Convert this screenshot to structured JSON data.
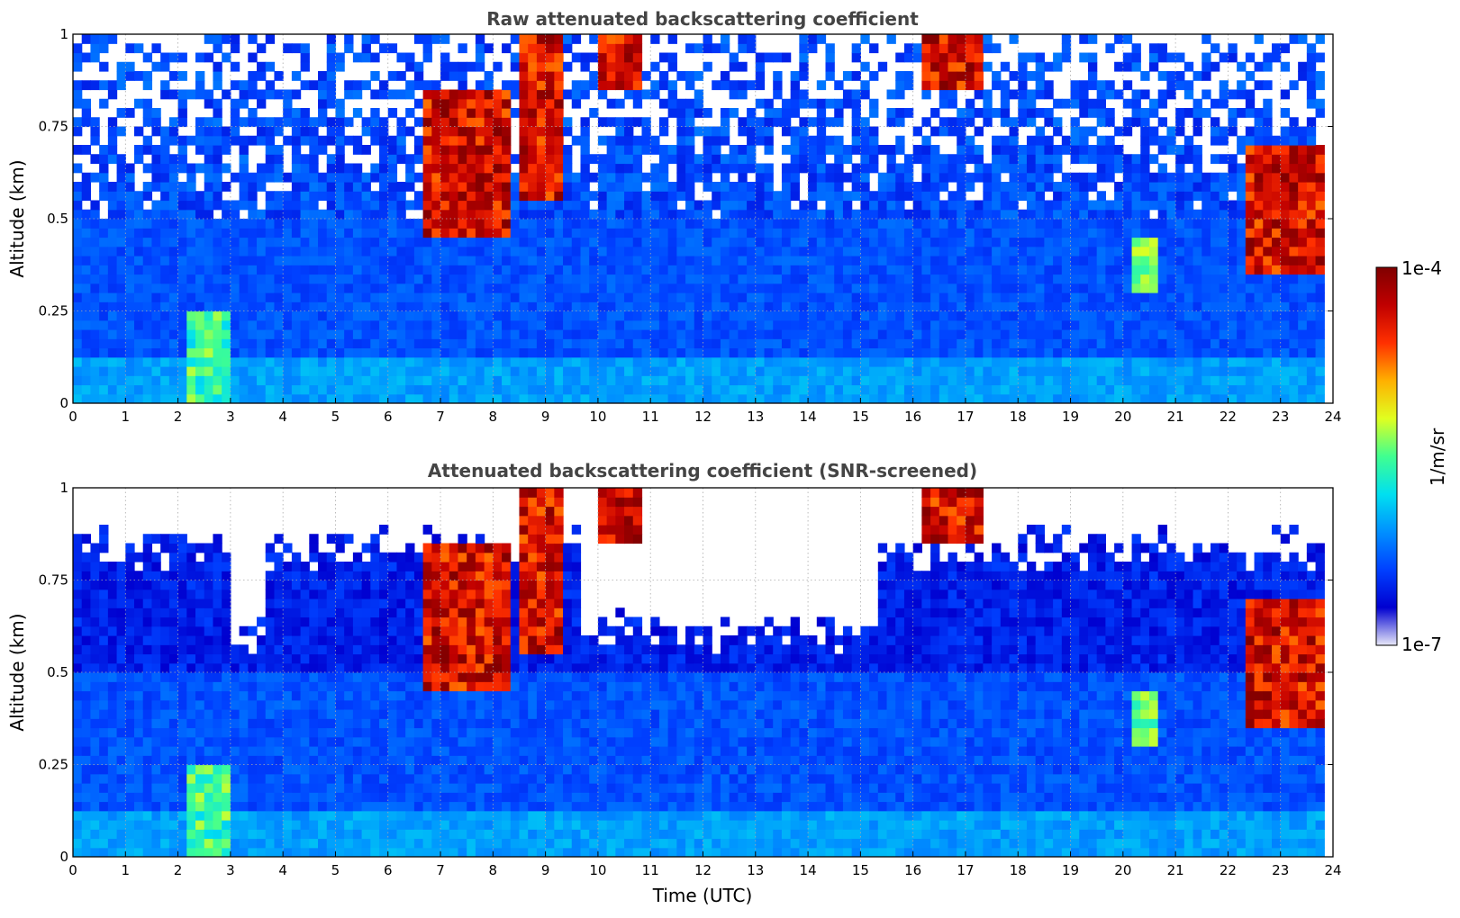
{
  "colorbar": {
    "max_label": "1e-4",
    "min_label": "1e-7",
    "unit_label": "1/m/sr",
    "colormap": [
      "#e8e8f8",
      "#0000d0",
      "#0040ff",
      "#0090ff",
      "#00e0f0",
      "#40ff90",
      "#e0ff20",
      "#ffb000",
      "#ff3000",
      "#c00000",
      "#800000"
    ]
  },
  "chart_data": [
    {
      "type": "heatmap",
      "title": "Raw attenuated backscattering coefficient",
      "xlabel": "",
      "ylabel": "Altitude (km)",
      "xlim": [
        0,
        24
      ],
      "ylim": [
        0,
        1
      ],
      "x_ticks": [
        "0",
        "1",
        "2",
        "3",
        "4",
        "5",
        "6",
        "7",
        "8",
        "9",
        "10",
        "11",
        "12",
        "13",
        "14",
        "15",
        "16",
        "17",
        "18",
        "19",
        "20",
        "21",
        "22",
        "23",
        "24"
      ],
      "y_ticks": [
        "0",
        "0.25",
        "0.5",
        "0.75",
        "1"
      ],
      "grid": true,
      "colorscale": "log",
      "color_range": [
        1e-07,
        0.0001
      ],
      "features": [
        {
          "x": [
            2.2,
            3.0
          ],
          "y": [
            0.0,
            0.25
          ],
          "level": "high-aerosol"
        },
        {
          "x": [
            6.7,
            8.4
          ],
          "y": [
            0.45,
            0.85
          ],
          "level": "cloud"
        },
        {
          "x": [
            8.5,
            9.4
          ],
          "y": [
            0.55,
            1.0
          ],
          "level": "cloud"
        },
        {
          "x": [
            10.0,
            10.8
          ],
          "y": [
            0.85,
            1.0
          ],
          "level": "cloud"
        },
        {
          "x": [
            16.1,
            17.4
          ],
          "y": [
            0.85,
            1.0
          ],
          "level": "cloud"
        },
        {
          "x": [
            20.2,
            20.6
          ],
          "y": [
            0.3,
            0.45
          ],
          "level": "aerosol"
        },
        {
          "x": [
            22.4,
            23.8
          ],
          "y": [
            0.35,
            0.7
          ],
          "level": "cloud"
        }
      ]
    },
    {
      "type": "heatmap",
      "title": "Attenuated backscattering coefficient (SNR-screened)",
      "xlabel": "Time (UTC)",
      "ylabel": "Altitude (km)",
      "xlim": [
        0,
        24
      ],
      "ylim": [
        0,
        1
      ],
      "x_ticks": [
        "0",
        "1",
        "2",
        "3",
        "4",
        "5",
        "6",
        "7",
        "8",
        "9",
        "10",
        "11",
        "12",
        "13",
        "14",
        "15",
        "16",
        "17",
        "18",
        "19",
        "20",
        "21",
        "22",
        "23",
        "24"
      ],
      "y_ticks": [
        "0",
        "0.25",
        "0.5",
        "0.75",
        "1"
      ],
      "grid": true,
      "colorscale": "log",
      "color_range": [
        1e-07,
        0.0001
      ],
      "features": [
        {
          "x": [
            2.2,
            3.0
          ],
          "y": [
            0.0,
            0.25
          ],
          "level": "high-aerosol"
        },
        {
          "x": [
            6.7,
            8.4
          ],
          "y": [
            0.45,
            0.85
          ],
          "level": "cloud"
        },
        {
          "x": [
            8.5,
            9.4
          ],
          "y": [
            0.55,
            1.0
          ],
          "level": "cloud"
        },
        {
          "x": [
            10.0,
            10.8
          ],
          "y": [
            0.85,
            1.0
          ],
          "level": "cloud"
        },
        {
          "x": [
            16.1,
            17.4
          ],
          "y": [
            0.85,
            1.0
          ],
          "level": "cloud"
        },
        {
          "x": [
            20.2,
            20.6
          ],
          "y": [
            0.3,
            0.45
          ],
          "level": "aerosol"
        },
        {
          "x": [
            22.4,
            23.8
          ],
          "y": [
            0.35,
            0.7
          ],
          "level": "cloud"
        }
      ]
    }
  ]
}
